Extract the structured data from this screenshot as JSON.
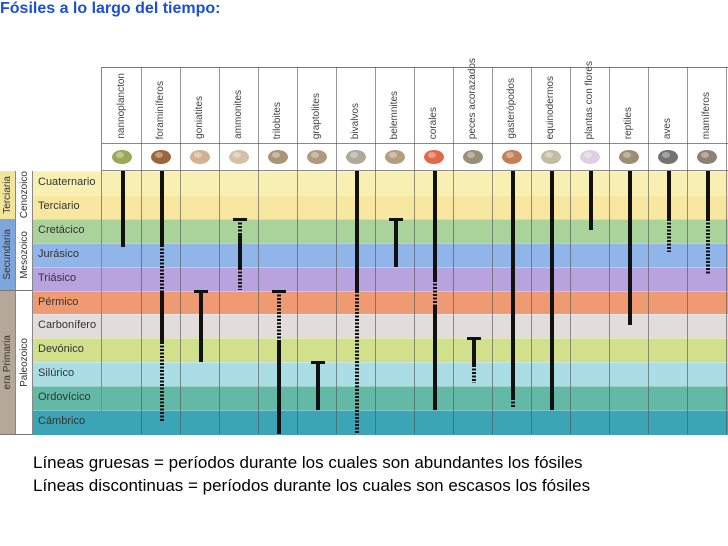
{
  "title": "Fósiles a lo largo del tiempo:",
  "title_suffix": ":",
  "eras": [
    {
      "label": "Terciaria",
      "color": "#f1e59a",
      "from": 0,
      "to": 2
    },
    {
      "label": "Secundaria",
      "color": "#7fa6dc",
      "from": 2,
      "to": 5
    },
    {
      "label": "era Primaria",
      "color": "#b6a899",
      "from": 5,
      "to": 11
    }
  ],
  "sube- ras_note": "",
  "sub_eras": [
    {
      "label": "Cenozoico",
      "from": 0,
      "to": 2
    },
    {
      "label": "Mesozoico",
      "from": 2,
      "to": 5
    },
    {
      "label": "Paleozoico",
      "from": 5,
      "to": 11
    }
  ],
  "periods": [
    {
      "name": "Cuaternario",
      "color": "#f8f0b2"
    },
    {
      "name": "Terciario",
      "color": "#f7e7a0"
    },
    {
      "name": "Cretácico",
      "color": "#a9d39b"
    },
    {
      "name": "Jurásico",
      "color": "#90b5e8"
    },
    {
      "name": "Triásico",
      "color": "#b8a3de"
    },
    {
      "name": "Pérmico",
      "color": "#ee9b73"
    },
    {
      "name": "Carbonífero",
      "color": "#e3dcdc"
    },
    {
      "name": "Devónico",
      "color": "#d0e08b"
    },
    {
      "name": "Silúrico",
      "color": "#aadde4"
    },
    {
      "name": "Ordovícico",
      "color": "#62b9a5"
    },
    {
      "name": "Cámbrico",
      "color": "#3ca5b5"
    }
  ],
  "fossils": [
    {
      "name": "nannoplancton",
      "icon": "nannoplankton-icon",
      "icon_color": "#8a9a3a",
      "segments": [
        {
          "type": "solid",
          "from": 0,
          "to": 3.2
        }
      ]
    },
    {
      "name": "foraminíferos",
      "icon": "foraminifera-icon",
      "icon_color": "#8a4a18",
      "segments": [
        {
          "type": "solid",
          "from": 0,
          "to": 3.1
        },
        {
          "type": "dashed",
          "from": 3.1,
          "to": 5.05
        },
        {
          "type": "solid",
          "from": 5.05,
          "to": 7.15
        },
        {
          "type": "dashed",
          "from": 7.15,
          "to": 10.5
        }
      ]
    },
    {
      "name": "goniatites",
      "icon": "goniatite-icon",
      "icon_color": "#c9a37a",
      "cap": 5.0,
      "segments": [
        {
          "type": "solid",
          "from": 5.0,
          "to": 8.0
        }
      ]
    },
    {
      "name": "ammonites",
      "icon": "ammonite-icon",
      "icon_color": "#cdb595",
      "cap": 2.0,
      "segments": [
        {
          "type": "dashed",
          "from": 2.0,
          "to": 2.6
        },
        {
          "type": "solid",
          "from": 2.6,
          "to": 4.05
        },
        {
          "type": "dashed",
          "from": 4.05,
          "to": 5.0
        }
      ]
    },
    {
      "name": "trilobites",
      "icon": "trilobite-icon",
      "icon_color": "#9a8260",
      "cap": 5.0,
      "segments": [
        {
          "type": "dashed",
          "from": 5.0,
          "to": 7.07
        },
        {
          "type": "solid",
          "from": 7.07,
          "to": 11
        }
      ]
    },
    {
      "name": "graptolites",
      "icon": "graptolite-icon",
      "icon_color": "#a08868",
      "cap": 8.0,
      "segments": [
        {
          "type": "solid",
          "from": 8.0,
          "to": 10.0
        }
      ]
    },
    {
      "name": "bivalvos",
      "icon": "bivalve-icon",
      "icon_color": "#a09a8a",
      "segments": [
        {
          "type": "solid",
          "from": 0,
          "to": 5.0
        },
        {
          "type": "dashed",
          "from": 5.0,
          "to": 11
        }
      ]
    },
    {
      "name": "belemnites",
      "icon": "belemnite-icon",
      "icon_color": "#a88c68",
      "cap": 2.0,
      "segments": [
        {
          "type": "solid",
          "from": 2.0,
          "to": 4.0
        }
      ]
    },
    {
      "name": "corales",
      "icon": "coral-icon",
      "icon_color": "#d8502a",
      "segments": [
        {
          "type": "solid",
          "from": 0,
          "to": 4.55
        },
        {
          "type": "dashed",
          "from": 4.55,
          "to": 5.6
        },
        {
          "type": "solid",
          "from": 5.6,
          "to": 10.0
        }
      ]
    },
    {
      "name": "peces acorazados",
      "icon": "armored-fish-icon",
      "icon_color": "#8a7a60",
      "cap": 7.0,
      "segments": [
        {
          "type": "solid",
          "from": 7.0,
          "to": 8.1
        },
        {
          "type": "dashed",
          "from": 8.1,
          "to": 8.85
        }
      ]
    },
    {
      "name": "gasterópodos",
      "icon": "gastropod-icon",
      "icon_color": "#b86a3a",
      "segments": [
        {
          "type": "solid",
          "from": 0,
          "to": 9.5
        },
        {
          "type": "dashed",
          "from": 9.5,
          "to": 9.9
        }
      ]
    },
    {
      "name": "equinodermos",
      "icon": "echinoderm-icon",
      "icon_color": "#b8b090",
      "segments": [
        {
          "type": "solid",
          "from": 0,
          "to": 10.0
        }
      ]
    },
    {
      "name": "plantas con flores",
      "icon": "flowering-plant-icon",
      "icon_color": "#d8c8d8",
      "segments": [
        {
          "type": "solid",
          "from": 0,
          "to": 2.45
        }
      ]
    },
    {
      "name": "reptiles",
      "icon": "reptile-icon",
      "icon_color": "#8a7a5a",
      "segments": [
        {
          "type": "solid",
          "from": 0,
          "to": 6.45
        }
      ]
    },
    {
      "name": "aves",
      "icon": "bird-icon",
      "icon_color": "#5a5a5a",
      "segments": [
        {
          "type": "solid",
          "from": 0,
          "to": 2.0
        },
        {
          "type": "dashed",
          "from": 2.0,
          "to": 3.4
        }
      ]
    },
    {
      "name": "mamíferos",
      "icon": "mammal-icon",
      "icon_color": "#7a6a5a",
      "segments": [
        {
          "type": "solid",
          "from": 0,
          "to": 2.0
        },
        {
          "type": "dashed",
          "from": 2.0,
          "to": 4.35
        }
      ]
    }
  ],
  "captions": [
    "Líneas gruesas = períodos durante los cuales son abundantes los fósiles",
    "Líneas discontinuas = períodos durante los cuales son escasos los fósiles"
  ]
}
